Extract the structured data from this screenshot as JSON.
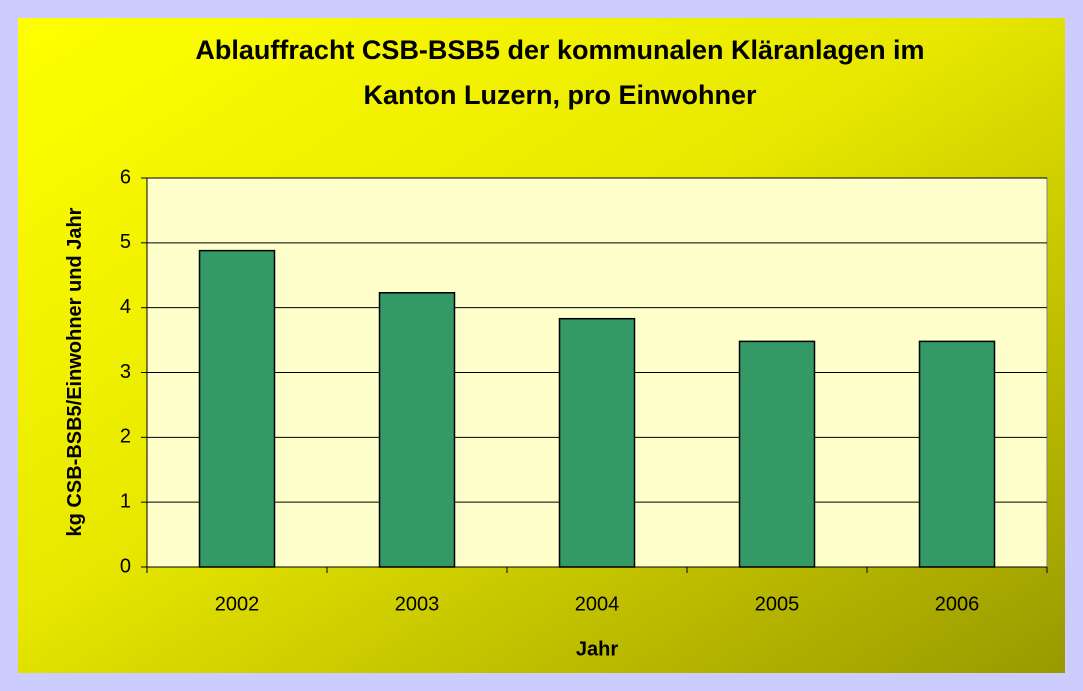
{
  "chart_data": {
    "type": "bar",
    "title": "Ablauffracht CSB-BSB5 der kommunalen Kläranlagen im Kanton Luzern, pro Einwohner",
    "x_label": "Jahr",
    "y_label": "kg CSB-BSB5/Einwohner und Jahr",
    "categories": [
      "2002",
      "2003",
      "2004",
      "2005",
      "2006"
    ],
    "values": [
      4.88,
      4.23,
      3.83,
      3.48,
      3.48
    ],
    "color": "#339966",
    "ylim": [
      0,
      6
    ],
    "yticks": [
      0,
      1,
      2,
      3,
      4,
      5,
      6
    ],
    "grid": true
  }
}
